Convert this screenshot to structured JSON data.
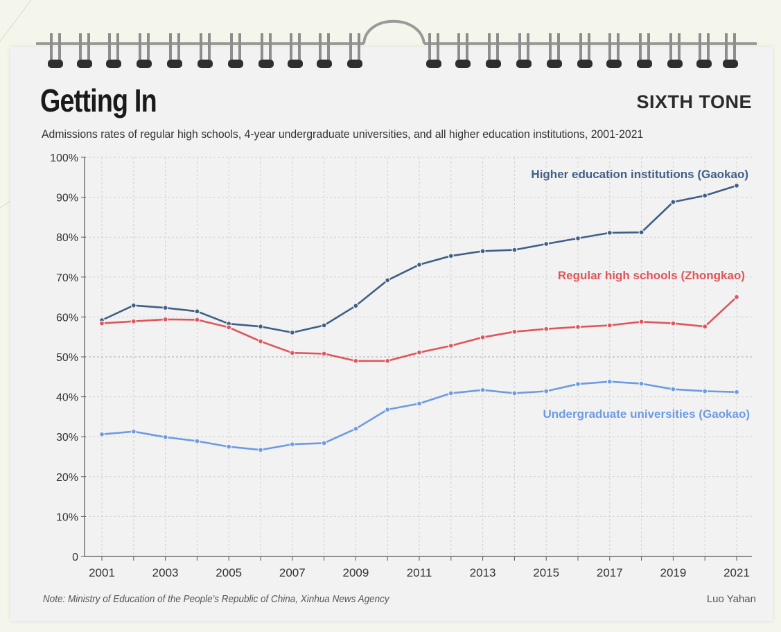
{
  "header": {
    "title": "Getting In",
    "brand": "SIXTH TONE",
    "subtitle": "Admissions rates of regular high schools, 4-year undergraduate universities, and all higher education institutions, 2001-2021"
  },
  "footer": {
    "note": "Note: Ministry of Education of the People's Republic of China, Xinhua News Agency",
    "author": "Luo Yahan"
  },
  "colors": {
    "higher_education": "#3f5f86",
    "high_schools": "#e0555a",
    "undergraduate": "#6d9be3",
    "grid": "#d0d0d0",
    "axis": "#555555"
  },
  "chart_data": {
    "type": "line",
    "x": [
      2001,
      2002,
      2003,
      2004,
      2005,
      2006,
      2007,
      2008,
      2009,
      2010,
      2011,
      2012,
      2013,
      2014,
      2015,
      2016,
      2017,
      2018,
      2019,
      2020,
      2021
    ],
    "x_tick_labels": [
      "2001",
      "2003",
      "2005",
      "2007",
      "2009",
      "2011",
      "2013",
      "2015",
      "2017",
      "2019",
      "2021"
    ],
    "y_tick_labels": [
      "0",
      "10%",
      "20%",
      "30%",
      "40%",
      "50%",
      "60%",
      "70%",
      "80%",
      "90%",
      "100%"
    ],
    "ylim": [
      0,
      100
    ],
    "grid": true,
    "series": [
      {
        "name": "Higher education institutions (Gaokao)",
        "color": "#3f5f86",
        "values": [
          59.2,
          62.9,
          62.3,
          61.4,
          58.3,
          57.6,
          56.1,
          57.9,
          62.8,
          69.2,
          73.1,
          75.3,
          76.5,
          76.8,
          78.3,
          79.7,
          81.1,
          81.2,
          88.8,
          90.4,
          92.9
        ]
      },
      {
        "name": "Regular high schools (Zhongkao)",
        "color": "#e0555a",
        "values": [
          58.4,
          58.9,
          59.4,
          59.3,
          57.4,
          53.9,
          51.0,
          50.8,
          49.0,
          49.0,
          51.1,
          52.8,
          54.9,
          56.3,
          57.0,
          57.5,
          57.9,
          58.8,
          58.4,
          57.6,
          65.0
        ]
      },
      {
        "name": "Undergraduate universities (Gaokao)",
        "color": "#6d9be3",
        "values": [
          30.6,
          31.3,
          29.9,
          28.9,
          27.5,
          26.7,
          28.1,
          28.4,
          32.0,
          36.8,
          38.3,
          40.9,
          41.7,
          40.9,
          41.4,
          43.2,
          43.8,
          43.3,
          41.9,
          41.4,
          41.2
        ]
      }
    ]
  }
}
